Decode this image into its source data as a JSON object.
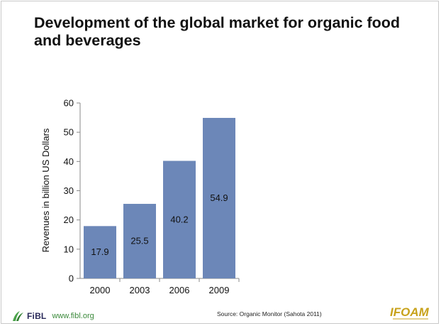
{
  "slide": {
    "title": "Development of the global market for organic food and beverages",
    "source": "Source: Organic Monitor (Sahota 2011)",
    "footer_brand": "FiBL",
    "footer_url": "www.fibl.org",
    "partner_logo": "IFOAM"
  },
  "colors": {
    "bar": "#6c87b8",
    "title": "#111111",
    "fibl_green": "#3b8a3b",
    "ifoam": "#c8a21a"
  },
  "chart_data": {
    "type": "bar",
    "title": "",
    "xlabel": "",
    "ylabel": "Revenues in billion US Dollars",
    "categories": [
      "2000",
      "2003",
      "2006",
      "2009"
    ],
    "values": [
      17.9,
      25.5,
      40.2,
      54.9
    ],
    "data_labels": [
      "17.9",
      "25.5",
      "40.2",
      "54.9"
    ],
    "ylim": [
      0,
      60
    ],
    "yticks": [
      0,
      10,
      20,
      30,
      40,
      50,
      60
    ],
    "grid": false,
    "legend": "none"
  }
}
